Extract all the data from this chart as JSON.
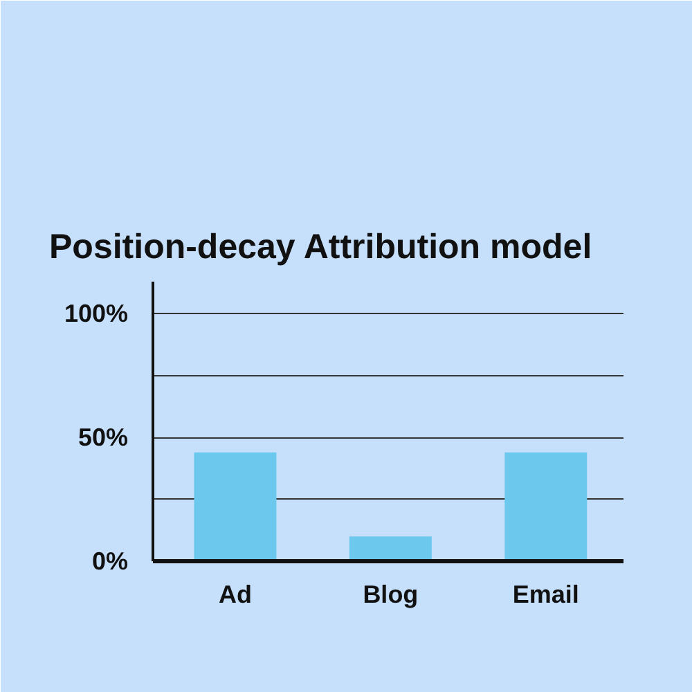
{
  "chart_data": {
    "type": "bar",
    "title": "Position-decay Attribution model",
    "categories": [
      "Ad",
      "Blog",
      "Email"
    ],
    "values": [
      44,
      10,
      44
    ],
    "color": "#6cc8ec",
    "ylim": [
      0,
      113
    ],
    "yticks": [
      {
        "value": 0,
        "label": "0%"
      },
      {
        "value": 25,
        "label": null
      },
      {
        "value": 50,
        "label": "50%"
      },
      {
        "value": 75,
        "label": null
      },
      {
        "value": 100,
        "label": "100%"
      }
    ],
    "grid": "y"
  }
}
